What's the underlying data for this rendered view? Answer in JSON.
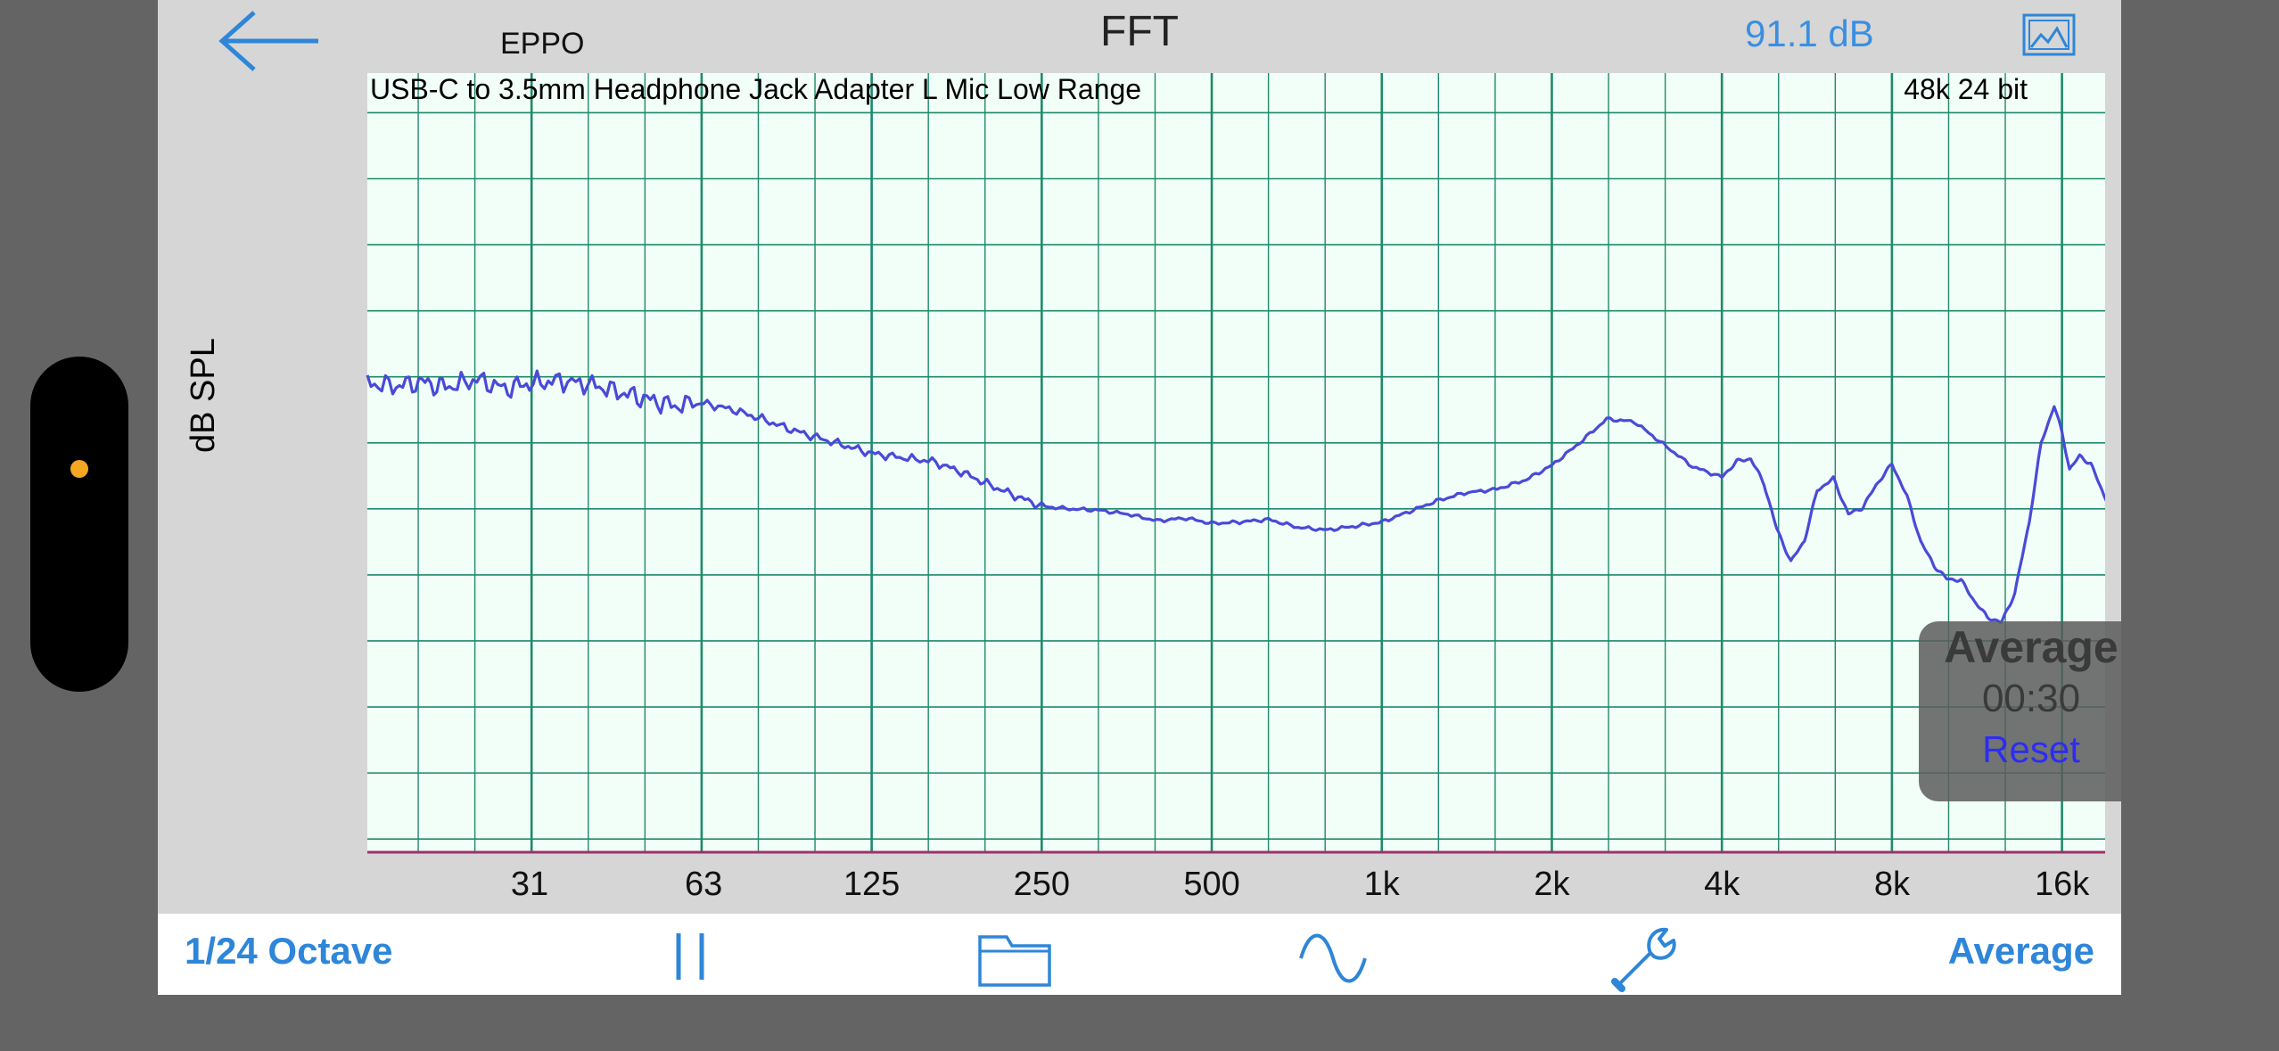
{
  "header": {
    "device_name": "EPPO",
    "title": "FFT",
    "level": "91.1 dB"
  },
  "average_overlay": {
    "title": "Average",
    "elapsed": "00:30",
    "reset_label": "Reset"
  },
  "toolbar": {
    "resolution_label": "1/24 Octave",
    "pause_icon": "pause-icon",
    "folder_icon": "folder-icon",
    "signal_icon": "sine-wave-icon",
    "settings_icon": "wrench-icon",
    "average_label": "Average"
  },
  "colors": {
    "accent": "#2e86d8",
    "grid": "#1e8a6a",
    "plot_background": "#f2fff8",
    "trace": "#4a4ad8"
  },
  "chart_data": {
    "type": "line",
    "title": "USB-C to 3.5mm Headphone Jack Adapter L Mic Low Range",
    "format_label": "48k 24 bit",
    "xlabel": "",
    "ylabel": "dB SPL",
    "x_scale": "log",
    "xlim": [
      16,
      20000
    ],
    "ylim": [
      34,
      93
    ],
    "grid": true,
    "x_ticks": [
      {
        "value": 31,
        "label": "31"
      },
      {
        "value": 63,
        "label": "63"
      },
      {
        "value": 125,
        "label": "125"
      },
      {
        "value": 250,
        "label": "250"
      },
      {
        "value": 500,
        "label": "500"
      },
      {
        "value": 1000,
        "label": "1k"
      },
      {
        "value": 2000,
        "label": "2k"
      },
      {
        "value": 4000,
        "label": "4k"
      },
      {
        "value": 8000,
        "label": "8k"
      },
      {
        "value": 16000,
        "label": "16k"
      }
    ],
    "y_ticks": [
      40,
      50,
      60,
      70,
      80,
      90
    ],
    "series": [
      {
        "x": [
          16,
          18,
          20,
          22,
          25,
          28,
          31,
          35,
          40,
          45,
          50,
          56,
          63,
          71,
          80,
          90,
          100,
          112,
          125,
          140,
          160,
          180,
          200,
          224,
          250,
          280,
          315,
          355,
          400,
          450,
          500,
          560,
          630,
          710,
          800,
          900,
          1000,
          1120,
          1250,
          1400,
          1600,
          1800,
          2000,
          2240,
          2500,
          2800,
          3150,
          3550,
          4000,
          4250,
          4500,
          4750,
          5000,
          5300,
          5600,
          5900,
          6300,
          6700,
          7100,
          7500,
          8000,
          8500,
          9000,
          9500,
          10000,
          10600,
          11200,
          11800,
          12500,
          13200,
          14000,
          14700,
          15500,
          16000,
          16500,
          17200,
          18000,
          19000,
          20000
        ],
        "y": [
          69.5,
          69.3,
          69.6,
          69.2,
          69.8,
          69.1,
          69.5,
          69.7,
          69.4,
          68.8,
          68.3,
          67.8,
          68.0,
          67.5,
          66.8,
          66.0,
          65.4,
          64.8,
          64.2,
          63.9,
          63.6,
          62.8,
          61.9,
          61.0,
          60.2,
          60.0,
          59.9,
          59.6,
          59.1,
          59.3,
          58.9,
          59.0,
          59.2,
          58.6,
          58.4,
          58.7,
          59.0,
          59.8,
          60.6,
          61.2,
          61.5,
          62.2,
          63.3,
          65.0,
          66.8,
          66.6,
          64.9,
          63.2,
          62.4,
          63.6,
          63.8,
          61.9,
          58.5,
          56.0,
          57.6,
          61.4,
          62.3,
          59.6,
          60.1,
          61.8,
          63.4,
          61.0,
          57.5,
          55.7,
          54.7,
          54.6,
          53.0,
          51.8,
          51.4,
          53.6,
          59.0,
          65.0,
          67.8,
          65.8,
          63.0,
          64.0,
          63.4,
          61.0,
          59.3
        ]
      }
    ]
  }
}
